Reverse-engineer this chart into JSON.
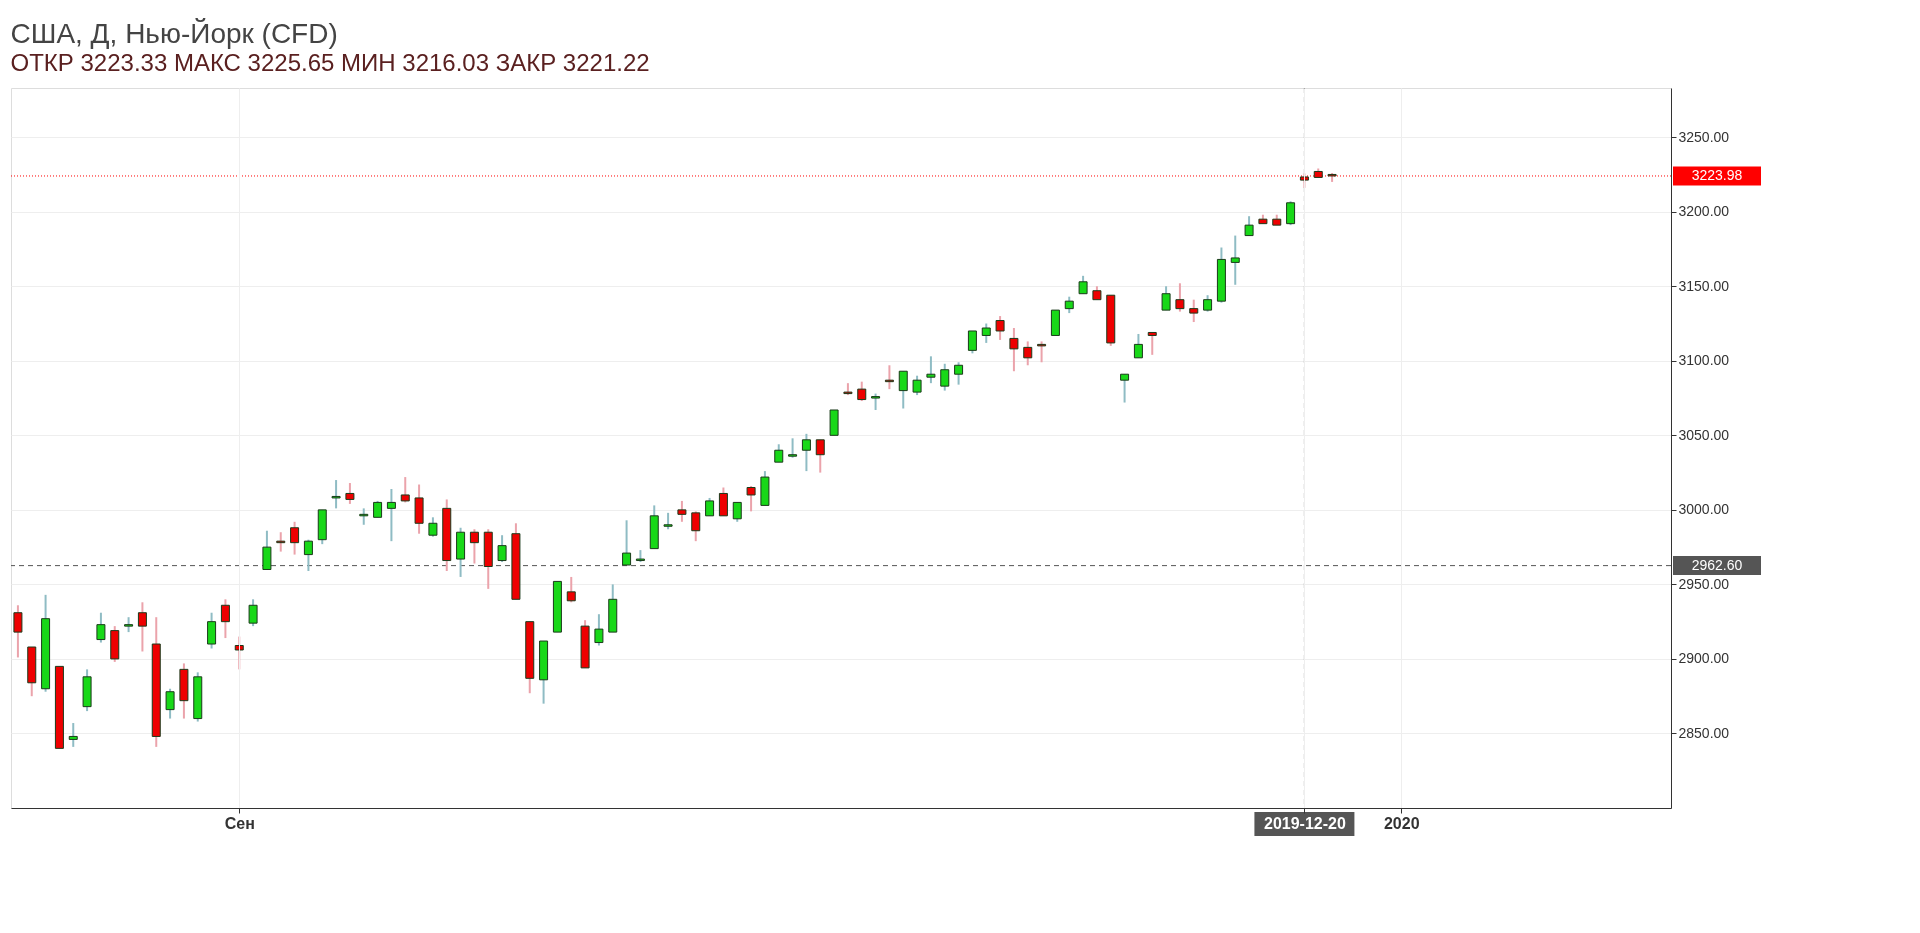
{
  "chart_data": {
    "type": "candlestick",
    "title": "США, Д, Нью-Йорк (CFD)",
    "subtitle": "ОТКР 3223.33   МАКС 3225.65   МИН 3216.03   ЗАКР 3221.22",
    "categories": [
      null,
      null,
      null,
      null,
      null,
      null,
      null,
      null,
      null,
      null,
      null,
      null,
      null,
      null,
      null,
      null,
      "Сен",
      null,
      null,
      null,
      null,
      null,
      null,
      null,
      null,
      null,
      null,
      null,
      null,
      null,
      null,
      null,
      null,
      null,
      null,
      null,
      null,
      null,
      null,
      null,
      null,
      null,
      null,
      null,
      null,
      null,
      null,
      null,
      null,
      null,
      null,
      null,
      null,
      null,
      null,
      null,
      null,
      null,
      null,
      null,
      null,
      null,
      null,
      null,
      null,
      null,
      null,
      null,
      null,
      null,
      null,
      null,
      null,
      null,
      null,
      null,
      null,
      null,
      null,
      null,
      null,
      null,
      null,
      null,
      null,
      null,
      null,
      null,
      null,
      null,
      null,
      null,
      null,
      "2019-12-20",
      null,
      null,
      null,
      null,
      null,
      null,
      "2020",
      null,
      null,
      null,
      null,
      null,
      null,
      null,
      null,
      null,
      null,
      null,
      null,
      null,
      null,
      null,
      null,
      null,
      null,
      null
    ],
    "ohlc": [
      [
        2931,
        2936,
        2901,
        2918
      ],
      [
        2908,
        2908,
        2875,
        2884
      ],
      [
        2880,
        2943,
        2878,
        2927
      ],
      [
        2895,
        2895,
        2840,
        2840
      ],
      [
        2846,
        2857,
        2841,
        2848
      ],
      [
        2868,
        2893,
        2865,
        2888
      ],
      [
        2913,
        2931,
        2911,
        2923
      ],
      [
        2919,
        2922,
        2898,
        2900
      ],
      [
        2922,
        2928,
        2918,
        2923
      ],
      [
        2931,
        2938,
        2905,
        2922
      ],
      [
        2910,
        2928,
        2841,
        2848
      ],
      [
        2866,
        2880,
        2860,
        2878
      ],
      [
        2893,
        2897,
        2860,
        2872
      ],
      [
        2860,
        2891,
        2858,
        2888
      ],
      [
        2910,
        2931,
        2907,
        2925
      ],
      [
        2936,
        2940,
        2914,
        2925
      ],
      [
        2909,
        2915,
        2893,
        2906
      ],
      [
        2924,
        2940,
        2922,
        2936
      ],
      [
        2960,
        2986,
        2960,
        2975
      ],
      [
        2979,
        2985,
        2972,
        2978
      ],
      [
        2988,
        2992,
        2970,
        2978
      ],
      [
        2970,
        2980,
        2959,
        2979
      ],
      [
        2980,
        3000,
        2977,
        3000
      ],
      [
        3008,
        3020,
        3001,
        3009
      ],
      [
        3011,
        3018,
        3004,
        3007
      ],
      [
        2996,
        3001,
        2990,
        2997
      ],
      [
        2995,
        3006,
        2995,
        3005
      ],
      [
        3001,
        3014,
        2979,
        3005
      ],
      [
        3010,
        3022,
        3005,
        3006
      ],
      [
        3008,
        3017,
        2984,
        2991
      ],
      [
        2983,
        2995,
        2982,
        2991
      ],
      [
        3001,
        3007,
        2959,
        2966
      ],
      [
        2967,
        2988,
        2955,
        2985
      ],
      [
        2985,
        2987,
        2964,
        2978
      ],
      [
        2985,
        2987,
        2947,
        2962
      ],
      [
        2966,
        2983,
        2965,
        2976
      ],
      [
        2984,
        2991,
        2940,
        2940
      ],
      [
        2925,
        2925,
        2877,
        2887
      ],
      [
        2886,
        2912,
        2870,
        2912
      ],
      [
        2918,
        2952,
        2918,
        2952
      ],
      [
        2945,
        2955,
        2938,
        2939
      ],
      [
        2922,
        2926,
        2894,
        2894
      ],
      [
        2911,
        2930,
        2909,
        2920
      ],
      [
        2918,
        2950,
        2918,
        2940
      ],
      [
        2963,
        2993,
        2963,
        2971
      ],
      [
        2966,
        2973,
        2965,
        2967
      ],
      [
        2974,
        3003,
        2974,
        2996
      ],
      [
        2989,
        2998,
        2987,
        2990
      ],
      [
        3000,
        3006,
        2992,
        2997
      ],
      [
        2998,
        2999,
        2979,
        2986
      ],
      [
        2996,
        3008,
        2996,
        3006
      ],
      [
        3011,
        3015,
        2996,
        2996
      ],
      [
        2994,
        3005,
        2992,
        3005
      ],
      [
        3015,
        3016,
        2999,
        3010
      ],
      [
        3003,
        3026,
        3003,
        3022
      ],
      [
        3032,
        3044,
        3032,
        3040
      ],
      [
        3036,
        3048,
        3035,
        3037
      ],
      [
        3040,
        3051,
        3026,
        3047
      ],
      [
        3047,
        3047,
        3025,
        3037
      ],
      [
        3050,
        3067,
        3050,
        3067
      ],
      [
        3079,
        3085,
        3077,
        3078
      ],
      [
        3081,
        3086,
        3073,
        3074
      ],
      [
        3075,
        3078,
        3067,
        3076
      ],
      [
        3087,
        3097,
        3081,
        3086
      ],
      [
        3080,
        3093,
        3068,
        3093
      ],
      [
        3079,
        3090,
        3077,
        3087
      ],
      [
        3089,
        3103,
        3085,
        3091
      ],
      [
        3083,
        3098,
        3080,
        3094
      ],
      [
        3091,
        3099,
        3084,
        3097
      ],
      [
        3107,
        3120,
        3105,
        3120
      ],
      [
        3117,
        3125,
        3112,
        3122
      ],
      [
        3127,
        3130,
        3114,
        3120
      ],
      [
        3115,
        3122,
        3093,
        3108
      ],
      [
        3109,
        3113,
        3097,
        3102
      ],
      [
        3111,
        3113,
        3099,
        3110
      ],
      [
        3117,
        3134,
        3117,
        3134
      ],
      [
        3135,
        3143,
        3132,
        3140
      ],
      [
        3145,
        3157,
        3145,
        3153
      ],
      [
        3147,
        3150,
        3141,
        3141
      ],
      [
        3144,
        3144,
        3110,
        3112
      ],
      [
        3087,
        3091,
        3072,
        3091
      ],
      [
        3102,
        3118,
        3102,
        3111
      ],
      [
        3119,
        3119,
        3104,
        3117
      ],
      [
        3134,
        3150,
        3134,
        3145
      ],
      [
        3141,
        3152,
        3133,
        3135
      ],
      [
        3135,
        3141,
        3126,
        3132
      ],
      [
        3134,
        3144,
        3133,
        3141
      ],
      [
        3140,
        3176,
        3139,
        3168
      ],
      [
        3166,
        3184,
        3151,
        3169
      ],
      [
        3184,
        3197,
        3184,
        3191
      ],
      [
        3195,
        3198,
        3192,
        3192
      ],
      [
        3195,
        3198,
        3191,
        3191
      ],
      [
        3192,
        3207,
        3191,
        3206
      ],
      [
        3223.33,
        3225.65,
        3216.03,
        3221.22
      ],
      [
        3227,
        3229,
        3223,
        3223
      ],
      [
        3225,
        3226,
        3220,
        3224
      ],
      null,
      null,
      null,
      null,
      null,
      null,
      null,
      null,
      null,
      null,
      null,
      null,
      null,
      null,
      null,
      null,
      null,
      null,
      null,
      null,
      null,
      null,
      null,
      null
    ],
    "ylim": [
      2800,
      3283
    ],
    "yticks": [
      {
        "value": 2850,
        "label": "2850.00"
      },
      {
        "value": 2900,
        "label": "2900.00"
      },
      {
        "value": 2950,
        "label": "2950.00"
      },
      {
        "value": 3000,
        "label": "3000.00"
      },
      {
        "value": 3050,
        "label": "3050.00"
      },
      {
        "value": 3100,
        "label": "3100.00"
      },
      {
        "value": 3150,
        "label": "3150.00"
      },
      {
        "value": 3200,
        "label": "3200.00"
      },
      {
        "value": 3250,
        "label": "3250.00"
      }
    ],
    "ref_lines": [
      {
        "axis": "y",
        "value": 3223.98,
        "label": "3223.98",
        "color": "#ff0000",
        "line_style": "dotted"
      },
      {
        "axis": "y",
        "value": 2962.6,
        "label": "2962.60",
        "color": "#555555",
        "line_style": "dashed"
      },
      {
        "axis": "x",
        "value": "2019-12-20",
        "color": "#555555",
        "line_style": "dashed"
      }
    ],
    "grid": true
  }
}
